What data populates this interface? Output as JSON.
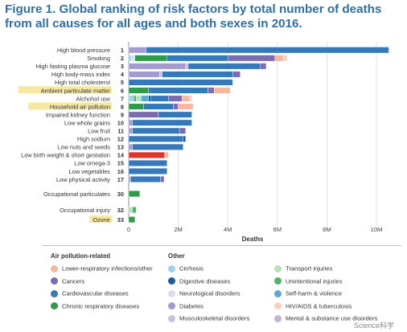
{
  "title": "Figure 1. Global ranking of risk factors by total number of deaths from all causes for all ages and both sexes in 2016.",
  "colors": {
    "title": "#2f6fa7",
    "highlight": "#f6e7a3",
    "lower_respiratory": "#f6b7a1",
    "cancers": "#7b6bb1",
    "cardiovascular": "#3579bb",
    "chronic_respiratory": "#2f9a4b",
    "cirrhosis": "#9fd1ea",
    "digestive": "#1d5c9c",
    "neurological": "#dcdcee",
    "diabetes": "#a49bd0",
    "musculoskeletal": "#c6c1de",
    "transport": "#b7e2b4",
    "unintentional": "#53b36c",
    "self_harm": "#5aaad7",
    "hiv_tb": "#f8d2bc",
    "mental": "#c4b2d6",
    "other_red": "#e03427"
  },
  "chart_data": {
    "type": "bar",
    "orientation": "horizontal",
    "stacked": true,
    "xlabel": "Deaths",
    "xlim": [
      0,
      10500000
    ],
    "xticks": [
      0,
      2000000,
      4000000,
      6000000,
      8000000,
      10000000
    ],
    "xtick_labels": [
      "0",
      "2M",
      "4M",
      "6M",
      "8M",
      "10M"
    ],
    "categories": [
      {
        "rank": "1",
        "label": "High blood pressure",
        "highlight": false,
        "segments": [
          {
            "cause": "diabetes",
            "value": 700000
          },
          {
            "cause": "cardiovascular",
            "value": 9800000
          }
        ]
      },
      {
        "rank": "2",
        "label": "Smoking",
        "highlight": false,
        "segments": [
          {
            "cause": "cirrhosis",
            "value": 100000
          },
          {
            "cause": "neurological",
            "value": 150000
          },
          {
            "cause": "chronic_respiratory",
            "value": 1300000
          },
          {
            "cause": "cardiovascular",
            "value": 2450000
          },
          {
            "cause": "cancers",
            "value": 1900000
          },
          {
            "cause": "lower_respiratory",
            "value": 350000
          },
          {
            "cause": "hiv_tb",
            "value": 150000
          }
        ]
      },
      {
        "rank": "3",
        "label": "High fasting plasma glucose",
        "highlight": false,
        "segments": [
          {
            "cause": "diabetes",
            "value": 2300000
          },
          {
            "cause": "musculoskeletal",
            "value": 100000
          },
          {
            "cause": "cardiovascular",
            "value": 2900000
          },
          {
            "cause": "cancers",
            "value": 250000
          }
        ]
      },
      {
        "rank": "4",
        "label": "High body-mass index",
        "highlight": false,
        "segments": [
          {
            "cause": "diabetes",
            "value": 1250000
          },
          {
            "cause": "musculoskeletal",
            "value": 100000
          },
          {
            "cause": "cardiovascular",
            "value": 2850000
          },
          {
            "cause": "cancers",
            "value": 300000
          }
        ]
      },
      {
        "rank": "5",
        "label": "High total cholesterol",
        "highlight": false,
        "segments": [
          {
            "cause": "cardiovascular",
            "value": 4200000
          }
        ]
      },
      {
        "rank": "6",
        "label": "Ambient particulate matter",
        "highlight": true,
        "segments": [
          {
            "cause": "chronic_respiratory",
            "value": 800000
          },
          {
            "cause": "cardiovascular",
            "value": 2400000
          },
          {
            "cause": "cancers",
            "value": 250000
          },
          {
            "cause": "lower_respiratory",
            "value": 650000
          }
        ]
      },
      {
        "rank": "7",
        "label": "Alchohol use",
        "highlight": false,
        "segments": [
          {
            "cause": "cirrhosis",
            "value": 200000
          },
          {
            "cause": "unintentional",
            "value": 100000
          },
          {
            "cause": "transport",
            "value": 200000
          },
          {
            "cause": "self_harm",
            "value": 300000
          },
          {
            "cause": "digestive",
            "value": 100000
          },
          {
            "cause": "cardiovascular",
            "value": 700000
          },
          {
            "cause": "cancers",
            "value": 550000
          },
          {
            "cause": "lower_respiratory",
            "value": 300000
          },
          {
            "cause": "hiv_tb",
            "value": 100000
          }
        ]
      },
      {
        "rank": "8",
        "label": "Household air pollution",
        "highlight": true,
        "segments": [
          {
            "cause": "chronic_respiratory",
            "value": 600000
          },
          {
            "cause": "cardiovascular",
            "value": 1200000
          },
          {
            "cause": "cancers",
            "value": 200000
          },
          {
            "cause": "lower_respiratory",
            "value": 600000
          }
        ]
      },
      {
        "rank": "9",
        "label": "Impaired kidney function",
        "highlight": false,
        "segments": [
          {
            "cause": "cancers",
            "value": 1200000
          },
          {
            "cause": "cardiovascular",
            "value": 1350000
          }
        ]
      },
      {
        "rank": "10",
        "label": "Low whole grains",
        "highlight": false,
        "segments": [
          {
            "cause": "diabetes",
            "value": 150000
          },
          {
            "cause": "cardiovascular",
            "value": 2400000
          }
        ]
      },
      {
        "rank": "11",
        "label": "Low fruit",
        "highlight": false,
        "segments": [
          {
            "cause": "diabetes",
            "value": 150000
          },
          {
            "cause": "cardiovascular",
            "value": 1900000
          },
          {
            "cause": "cancers",
            "value": 250000
          }
        ]
      },
      {
        "rank": "12",
        "label": "High sodium",
        "highlight": false,
        "segments": [
          {
            "cause": "cardiovascular",
            "value": 2200000
          },
          {
            "cause": "digestive",
            "value": 100000
          }
        ]
      },
      {
        "rank": "13",
        "label": "Low nuts and seeds",
        "highlight": false,
        "segments": [
          {
            "cause": "diabetes",
            "value": 150000
          },
          {
            "cause": "cardiovascular",
            "value": 2050000
          }
        ]
      },
      {
        "rank": "14",
        "label": "Low birth weight & short gestation",
        "highlight": false,
        "segments": [
          {
            "cause": "other_red",
            "value": 1450000
          },
          {
            "cause": "lower_respiratory",
            "value": 150000
          }
        ]
      },
      {
        "rank": "15",
        "label": "Low omega-3",
        "highlight": false,
        "segments": [
          {
            "cause": "cardiovascular",
            "value": 1550000
          }
        ]
      },
      {
        "rank": "16",
        "label": "Low vegetables",
        "highlight": false,
        "segments": [
          {
            "cause": "cardiovascular",
            "value": 1550000
          }
        ]
      },
      {
        "rank": "17",
        "label": "Low physical activity",
        "highlight": false,
        "segments": [
          {
            "cause": "diabetes",
            "value": 80000
          },
          {
            "cause": "cardiovascular",
            "value": 1200000
          },
          {
            "cause": "cancers",
            "value": 150000
          }
        ]
      },
      {
        "rank": "30",
        "label": "Occupational particulates",
        "highlight": false,
        "gap_before": true,
        "segments": [
          {
            "cause": "chronic_respiratory",
            "value": 450000
          }
        ]
      },
      {
        "rank": "32",
        "label": "Occupational injury",
        "highlight": false,
        "gap_before": true,
        "segments": [
          {
            "cause": "transport",
            "value": 150000
          },
          {
            "cause": "unintentional",
            "value": 150000
          }
        ]
      },
      {
        "rank": "33",
        "label": "Ozone",
        "highlight": true,
        "segments": [
          {
            "cause": "chronic_respiratory",
            "value": 250000
          }
        ]
      }
    ]
  },
  "legend": {
    "group1_title": "Air pollution-related",
    "group2_title": "Other",
    "group1": [
      {
        "key": "lower_respiratory",
        "label": "Lower-respiratory infections/other"
      },
      {
        "key": "cancers",
        "label": "Cancers"
      },
      {
        "key": "cardiovascular",
        "label": "Cardiovascular diseases"
      },
      {
        "key": "chronic_respiratory",
        "label": "Chronic respiratory diseases"
      }
    ],
    "group2a": [
      {
        "key": "cirrhosis",
        "label": "Cirrhosis"
      },
      {
        "key": "digestive",
        "label": "Digestive diseases"
      },
      {
        "key": "neurological",
        "label": "Neurological disorders"
      },
      {
        "key": "diabetes",
        "label": "Diabetes"
      },
      {
        "key": "musculoskeletal",
        "label": "Musculoskeletal disorders"
      }
    ],
    "group2b": [
      {
        "key": "transport",
        "label": "Transport injuries"
      },
      {
        "key": "unintentional",
        "label": "Unintentional injuries"
      },
      {
        "key": "self_harm",
        "label": "Self-harm & violence"
      },
      {
        "key": "hiv_tb",
        "label": "HIV/AIDS & tuberculosis"
      },
      {
        "key": "mental",
        "label": "Mental & substance use disorders"
      }
    ]
  },
  "watermark": "Science科学"
}
